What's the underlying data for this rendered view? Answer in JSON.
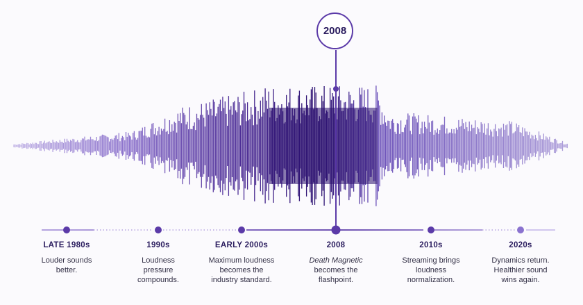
{
  "badge": {
    "year": "2008"
  },
  "colors": {
    "light": "#b7a9e0",
    "mid": "#6a4bb5",
    "dark": "#2b1070",
    "accent": "#5b3aa8"
  },
  "timeline": [
    {
      "label": "LATE 1980s",
      "desc_lines": [
        "Louder sounds",
        "better."
      ]
    },
    {
      "label": "1990s",
      "desc_lines": [
        "Loudness",
        "pressure",
        "compounds."
      ]
    },
    {
      "label": "EARLY 2000s",
      "desc_lines": [
        "Maximum loudness",
        "becomes the",
        "industry standard."
      ]
    },
    {
      "label": "2008",
      "desc_italic": "Death Magnetic",
      "desc_lines": [
        "becomes the",
        "flashpoint."
      ]
    },
    {
      "label": "2010s",
      "desc_lines": [
        "Streaming brings",
        "loudness",
        "normalization."
      ]
    },
    {
      "label": "2020s",
      "desc_lines": [
        "Dynamics return.",
        "Healthier sound",
        "wins again."
      ]
    }
  ]
}
